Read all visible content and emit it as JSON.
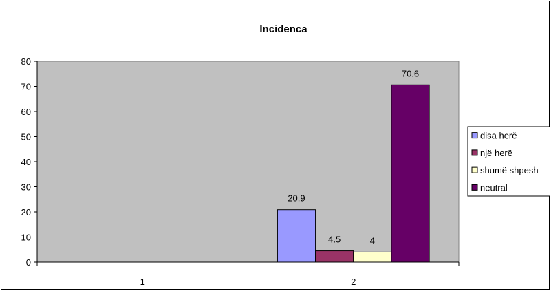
{
  "chart_data": {
    "type": "bar",
    "title": "Incidenca",
    "xlabel": "",
    "ylabel": "",
    "categories": [
      "1",
      "2"
    ],
    "ylim": [
      0,
      80
    ],
    "yticks": [
      0,
      10,
      20,
      30,
      40,
      50,
      60,
      70,
      80
    ],
    "grid": false,
    "legend_position": "right",
    "plot_background": "#c0c0c0",
    "series": [
      {
        "name": "disa herë",
        "color": "#9999ff",
        "values": [
          null,
          20.9
        ],
        "labels": [
          "",
          "20.9"
        ]
      },
      {
        "name": "një herë",
        "color": "#993366",
        "values": [
          null,
          4.5
        ],
        "labels": [
          "",
          "4.5"
        ]
      },
      {
        "name": "shumë shpesh",
        "color": "#ffffcc",
        "values": [
          null,
          4
        ],
        "labels": [
          "",
          "4"
        ]
      },
      {
        "name": "neutral",
        "color": "#660066",
        "values": [
          null,
          70.6
        ],
        "labels": [
          "",
          "70.6"
        ]
      }
    ]
  }
}
